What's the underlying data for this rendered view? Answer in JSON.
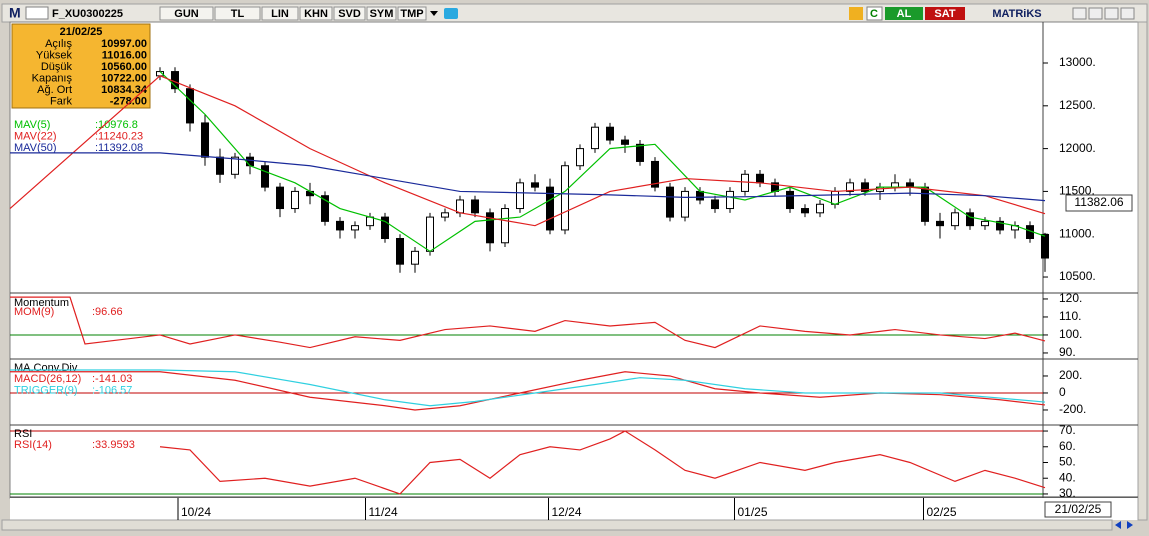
{
  "toolbar": {
    "logo": "M",
    "symbol": "F_XU0300225",
    "buttons": [
      "GUN",
      "TL",
      "LIN",
      "KHN",
      "SVD",
      "SYM",
      "TMP"
    ],
    "c": "C",
    "buy": "AL",
    "sell": "SAT",
    "brand": "MATRiKS"
  },
  "info_box": {
    "date": "21/02/25",
    "rows": [
      [
        "Açılış",
        "10997.00"
      ],
      [
        "Yüksek",
        "11016.00"
      ],
      [
        "Düşük",
        "10560.00"
      ],
      [
        "Kapanış",
        "10722.00"
      ],
      [
        "Ağ. Ort",
        "10834.34"
      ],
      [
        "Fark",
        "-278.00"
      ]
    ]
  },
  "price_panel": {
    "ylim": [
      10325,
      13479
    ],
    "yticks": [
      {
        "value": 13000,
        "label": "13000."
      },
      {
        "value": 12500,
        "label": "12500."
      },
      {
        "value": 12000,
        "label": "12000."
      },
      {
        "value": 11500,
        "label": "11500."
      },
      {
        "value": 11000,
        "label": "11000."
      },
      {
        "value": 10500,
        "label": "10500."
      }
    ],
    "last_label": "11382.06",
    "candles": [
      [
        12850,
        12950,
        12800,
        12900
      ],
      [
        12900,
        12950,
        12650,
        12700
      ],
      [
        12700,
        12750,
        12200,
        12300
      ],
      [
        12300,
        12400,
        11800,
        11900
      ],
      [
        11900,
        12000,
        11600,
        11700
      ],
      [
        11700,
        11950,
        11650,
        11900
      ],
      [
        11900,
        11950,
        11700,
        11800
      ],
      [
        11800,
        11850,
        11500,
        11550
      ],
      [
        11550,
        11600,
        11200,
        11300
      ],
      [
        11300,
        11550,
        11250,
        11500
      ],
      [
        11500,
        11600,
        11350,
        11450
      ],
      [
        11450,
        11500,
        11100,
        11150
      ],
      [
        11150,
        11200,
        10950,
        11050
      ],
      [
        11050,
        11150,
        10950,
        11100
      ],
      [
        11100,
        11250,
        11050,
        11200
      ],
      [
        11200,
        11250,
        10900,
        10950
      ],
      [
        10950,
        11000,
        10550,
        10650
      ],
      [
        10650,
        10850,
        10550,
        10800
      ],
      [
        10800,
        11250,
        10750,
        11200
      ],
      [
        11200,
        11300,
        11150,
        11250
      ],
      [
        11250,
        11450,
        11200,
        11400
      ],
      [
        11400,
        11450,
        11200,
        11250
      ],
      [
        11250,
        11300,
        10800,
        10900
      ],
      [
        10900,
        11350,
        10850,
        11300
      ],
      [
        11300,
        11650,
        11250,
        11600
      ],
      [
        11600,
        11700,
        11500,
        11550
      ],
      [
        11550,
        11650,
        11000,
        11050
      ],
      [
        11050,
        11850,
        11000,
        11800
      ],
      [
        11800,
        12050,
        11750,
        12000
      ],
      [
        12000,
        12300,
        11950,
        12250
      ],
      [
        12250,
        12300,
        12050,
        12100
      ],
      [
        12100,
        12150,
        11950,
        12050
      ],
      [
        12050,
        12100,
        11800,
        11850
      ],
      [
        11850,
        11900,
        11500,
        11550
      ],
      [
        11550,
        11600,
        11150,
        11200
      ],
      [
        11200,
        11550,
        11150,
        11500
      ],
      [
        11500,
        11550,
        11350,
        11400
      ],
      [
        11400,
        11450,
        11250,
        11300
      ],
      [
        11300,
        11550,
        11250,
        11500
      ],
      [
        11500,
        11750,
        11450,
        11700
      ],
      [
        11700,
        11750,
        11550,
        11600
      ],
      [
        11600,
        11650,
        11450,
        11500
      ],
      [
        11500,
        11550,
        11250,
        11300
      ],
      [
        11300,
        11350,
        11200,
        11250
      ],
      [
        11250,
        11400,
        11200,
        11350
      ],
      [
        11350,
        11550,
        11300,
        11500
      ],
      [
        11500,
        11650,
        11450,
        11600
      ],
      [
        11600,
        11650,
        11450,
        11500
      ],
      [
        11500,
        11600,
        11400,
        11550
      ],
      [
        11550,
        11700,
        11500,
        11600
      ],
      [
        11600,
        11650,
        11450,
        11550
      ],
      [
        11550,
        11600,
        11100,
        11150
      ],
      [
        11150,
        11250,
        10950,
        11100
      ],
      [
        11100,
        11300,
        11050,
        11250
      ],
      [
        11250,
        11300,
        11050,
        11100
      ],
      [
        11100,
        11200,
        11050,
        11150
      ],
      [
        11150,
        11200,
        11000,
        11050
      ],
      [
        11050,
        11150,
        10950,
        11100
      ],
      [
        11100,
        11150,
        10900,
        10950
      ],
      [
        10997,
        11016,
        10560,
        10722
      ]
    ],
    "lines": [
      {
        "name": "MAV(5)",
        "value": ":10976.8",
        "color": "#00c000",
        "x": [
          0,
          3,
          6,
          9,
          12,
          15,
          18,
          21,
          24,
          27,
          30,
          33,
          36,
          39,
          42,
          45,
          48,
          51,
          54,
          57,
          59
        ],
        "values": [
          12900,
          12400,
          11800,
          11600,
          11300,
          11150,
          10800,
          11150,
          11200,
          11500,
          12000,
          12050,
          11500,
          11400,
          11550,
          11350,
          11550,
          11550,
          11200,
          11100,
          10977
        ]
      },
      {
        "name": "MAV(22)",
        "value": ":11240.23",
        "color": "#e02020",
        "x": [
          -10,
          0,
          5,
          10,
          15,
          20,
          25,
          30,
          35,
          40,
          45,
          50,
          55,
          59
        ],
        "values": [
          11300,
          12850,
          12500,
          12000,
          11600,
          11250,
          11100,
          11500,
          11650,
          11600,
          11500,
          11550,
          11450,
          11240
        ]
      },
      {
        "name": "MAV(50)",
        "value": ":11392.08",
        "color": "#1a2a9a",
        "x": [
          -10,
          0,
          5,
          10,
          15,
          20,
          25,
          30,
          35,
          40,
          45,
          50,
          55,
          59
        ],
        "values": [
          11950,
          11950,
          11880,
          11800,
          11650,
          11500,
          11480,
          11460,
          11430,
          11440,
          11460,
          11480,
          11450,
          11392
        ]
      }
    ]
  },
  "momentum_panel": {
    "title": "Momentum",
    "ylim": [
      87.2,
      122.2
    ],
    "yticks": [
      {
        "value": 120,
        "label": "120."
      },
      {
        "value": 110,
        "label": "110."
      },
      {
        "value": 100,
        "label": "100."
      },
      {
        "value": 90,
        "label": "90."
      }
    ],
    "ref_lines": [
      {
        "value": 100,
        "color": "#008000"
      }
    ],
    "lines": [
      {
        "name": "MOM(9)",
        "value": ":96.66",
        "color": "#e02020",
        "x": [
          -10,
          -6,
          -5,
          0,
          2,
          5,
          8,
          10,
          13,
          16,
          19,
          22,
          25,
          27,
          30,
          33,
          35,
          37,
          40,
          43,
          46,
          49,
          52,
          55,
          57,
          59
        ],
        "values": [
          121,
          121,
          95,
          100,
          95,
          100,
          96,
          93,
          99,
          97,
          103,
          105,
          102,
          108,
          105,
          107,
          97,
          93,
          105,
          102,
          100,
          103,
          100,
          98,
          101,
          96.66
        ]
      }
    ]
  },
  "macd_panel": {
    "title": "MA.Conv.Div",
    "ylim": [
      -365,
      388
    ],
    "yticks": [
      {
        "value": 200,
        "label": "200."
      },
      0,
      {
        "value": -200,
        "label": "-200."
      }
    ],
    "ref_lines": [
      {
        "value": 0,
        "color": "#c00000"
      }
    ],
    "lines": [
      {
        "name": "MACD(26,12)",
        "value": ":-141.03",
        "color": "#e02020",
        "x": [
          -10,
          0,
          5,
          10,
          15,
          17,
          20,
          24,
          28,
          31,
          34,
          37,
          40,
          44,
          48,
          52,
          56,
          59
        ],
        "values": [
          250,
          250,
          150,
          -50,
          -150,
          -200,
          -150,
          0,
          150,
          250,
          200,
          50,
          0,
          -50,
          0,
          -20,
          -80,
          -141
        ]
      },
      {
        "name": "TRIGGER(9)",
        "value": ":-106.57",
        "color": "#30d0e0",
        "x": [
          -10,
          0,
          5,
          10,
          15,
          18,
          21,
          25,
          29,
          32,
          35,
          39,
          43,
          48,
          52,
          56,
          59
        ],
        "values": [
          270,
          270,
          250,
          100,
          -80,
          -150,
          -100,
          0,
          100,
          180,
          150,
          50,
          0,
          0,
          0,
          -60,
          -107
        ]
      }
    ]
  },
  "rsi_panel": {
    "title": "RSI",
    "ylim": [
      28.7,
      73.2
    ],
    "yticks": [
      {
        "value": 70,
        "label": "70."
      },
      {
        "value": 60,
        "label": "60."
      },
      {
        "value": 50,
        "label": "50."
      },
      {
        "value": 40,
        "label": "40."
      },
      {
        "value": 30,
        "label": "30."
      }
    ],
    "ref_lines": [
      {
        "value": 70,
        "color": "#c00000"
      },
      {
        "value": 30,
        "color": "#008000"
      }
    ],
    "lines": [
      {
        "name": "RSI(14)",
        "value": ":33.9593",
        "color": "#e02020",
        "x": [
          0,
          2,
          4,
          7,
          10,
          13,
          16,
          18,
          20,
          22,
          24,
          26,
          28,
          30,
          31,
          33,
          35,
          37,
          40,
          43,
          45,
          48,
          50,
          53,
          55,
          57,
          59
        ],
        "values": [
          60,
          58,
          38,
          40,
          35,
          40,
          30,
          50,
          52,
          40,
          55,
          60,
          58,
          65,
          70,
          58,
          45,
          40,
          50,
          45,
          50,
          55,
          50,
          38,
          45,
          40,
          33.96
        ]
      }
    ]
  },
  "xticks": [
    {
      "value": 1.2,
      "label": "10/24"
    },
    {
      "value": 13.7,
      "label": "11/24"
    },
    {
      "value": 25.9,
      "label": "12/24"
    },
    {
      "value": 38.3,
      "label": "01/25"
    },
    {
      "value": 50.9,
      "label": "02/25"
    }
  ],
  "date_box": "21/02/25"
}
